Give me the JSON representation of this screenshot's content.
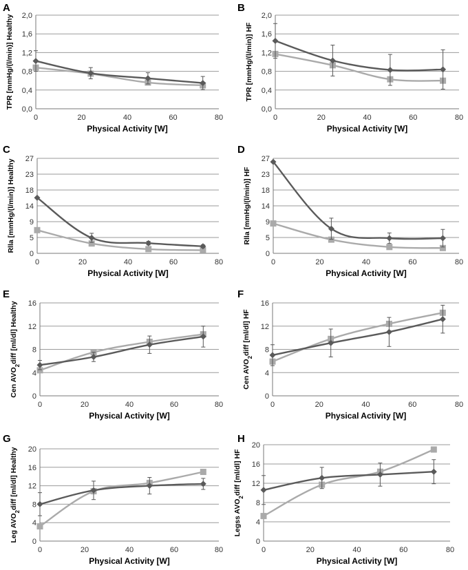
{
  "series_colors": {
    "dark": "#5a5a5a",
    "light": "#aaaaaa"
  },
  "chart_data": [
    {
      "panel": "A",
      "type": "line",
      "ylabel": "TPR [mmHg/(l/min)] Healthy",
      "xlabel": "Physical Activity [W]",
      "ylim": [
        0,
        2.0
      ],
      "yticks": [
        "0,0",
        "0,4",
        "0,8",
        "1,2",
        "1,6",
        "2,0"
      ],
      "xlim": [
        0,
        80
      ],
      "xticks": [
        "0",
        "20",
        "40",
        "60",
        "80"
      ],
      "series": [
        {
          "name": "dark",
          "marker": "diamond",
          "x": [
            0,
            24,
            49,
            73
          ],
          "y": [
            1.02,
            0.76,
            0.65,
            0.55
          ],
          "err": [
            0.22,
            0.12,
            0.12,
            0.14
          ]
        },
        {
          "name": "light",
          "marker": "square",
          "x": [
            0,
            24,
            49,
            73
          ],
          "y": [
            0.88,
            0.75,
            0.56,
            0.5
          ],
          "err": [
            0,
            0,
            0,
            0
          ]
        }
      ]
    },
    {
      "panel": "B",
      "type": "line",
      "ylabel": "TPR [mmHg/(l/min)] HF",
      "xlabel": "Physical Activity [W]",
      "ylim": [
        0,
        2.0
      ],
      "yticks": [
        "0,0",
        "0,4",
        "0,8",
        "1,2",
        "1,6",
        "2,0"
      ],
      "xlim": [
        0,
        80
      ],
      "xticks": [
        "0",
        "20",
        "40",
        "60",
        "80"
      ],
      "series": [
        {
          "name": "dark",
          "marker": "diamond",
          "x": [
            0,
            25,
            50,
            73
          ],
          "y": [
            1.45,
            1.03,
            0.83,
            0.84
          ],
          "err": [
            0.37,
            0.33,
            0.33,
            0.42
          ]
        },
        {
          "name": "light",
          "marker": "square",
          "x": [
            0,
            25,
            50,
            73
          ],
          "y": [
            1.17,
            0.93,
            0.63,
            0.6
          ],
          "err": [
            0,
            0,
            0,
            0
          ]
        }
      ]
    },
    {
      "panel": "C",
      "type": "line",
      "ylabel": "Rlla [mmHg/(l/min)] Healthy",
      "xlabel": "Physical Activity [W]",
      "ylim": [
        0,
        27
      ],
      "yticks": [
        "0",
        "5",
        "9",
        "14",
        "18",
        "23",
        "27"
      ],
      "ytickvals": [
        0,
        4.5,
        9,
        13.5,
        18,
        22.5,
        27
      ],
      "xlim": [
        0,
        80
      ],
      "xticks": [
        "0",
        "20",
        "40",
        "60",
        "80"
      ],
      "series": [
        {
          "name": "dark",
          "marker": "diamond",
          "x": [
            0,
            24,
            49,
            73
          ],
          "y": [
            15.8,
            4.4,
            2.9,
            2.0
          ],
          "err": [
            0,
            1.3,
            0.5,
            0.4
          ]
        },
        {
          "name": "light",
          "marker": "square",
          "x": [
            0,
            24,
            49,
            73
          ],
          "y": [
            6.6,
            2.8,
            1.2,
            0.9
          ],
          "err": [
            0,
            0,
            0,
            0
          ]
        }
      ]
    },
    {
      "panel": "D",
      "type": "line",
      "ylabel": "Rlla [mmHg/(l/min)] HF",
      "xlabel": "Physical Activity [W]",
      "ylim": [
        0,
        27
      ],
      "yticks": [
        "0",
        "5",
        "9",
        "14",
        "18",
        "23",
        "27"
      ],
      "ytickvals": [
        0,
        4.5,
        9,
        13.5,
        18,
        22.5,
        27
      ],
      "xlim": [
        0,
        80
      ],
      "xticks": [
        "0",
        "20",
        "40",
        "60",
        "80"
      ],
      "series": [
        {
          "name": "dark",
          "marker": "diamond",
          "x": [
            0,
            25,
            50,
            73
          ],
          "y": [
            26,
            7.0,
            4.3,
            4.3
          ],
          "err": [
            0,
            3.0,
            1.5,
            2.5
          ]
        },
        {
          "name": "light",
          "marker": "square",
          "x": [
            0,
            25,
            50,
            73
          ],
          "y": [
            8.5,
            3.9,
            1.8,
            1.5
          ],
          "err": [
            0,
            0,
            0,
            0
          ]
        }
      ]
    },
    {
      "panel": "E",
      "type": "line",
      "ylabel": "Cen AVO2diff [ml/dl] Healthy",
      "xlabel": "Physical Activity [W]",
      "ylim": [
        0,
        16
      ],
      "yticks": [
        "0",
        "4",
        "8",
        "12",
        "16"
      ],
      "xlim": [
        0,
        80
      ],
      "xticks": [
        "0",
        "20",
        "40",
        "60",
        "80"
      ],
      "series": [
        {
          "name": "dark",
          "marker": "diamond",
          "x": [
            0,
            24,
            49,
            73
          ],
          "y": [
            5.3,
            6.7,
            8.8,
            10.2
          ],
          "err": [
            0.8,
            0.8,
            1.5,
            1.8
          ]
        },
        {
          "name": "light",
          "marker": "square",
          "x": [
            0,
            24,
            49,
            73
          ],
          "y": [
            4.4,
            7.5,
            9.3,
            10.6
          ],
          "err": [
            0,
            0,
            0,
            0
          ]
        }
      ]
    },
    {
      "panel": "F",
      "type": "line",
      "ylabel": "Cen AVO2diff [ml/dl] HF",
      "xlabel": "Physical Activity [W]",
      "ylim": [
        0,
        16
      ],
      "yticks": [
        "0",
        "4",
        "8",
        "12",
        "16"
      ],
      "xlim": [
        0,
        80
      ],
      "xticks": [
        "0",
        "20",
        "40",
        "60",
        "80"
      ],
      "series": [
        {
          "name": "dark",
          "marker": "diamond",
          "x": [
            0,
            25,
            50,
            73
          ],
          "y": [
            7.0,
            9.1,
            11.0,
            13.2
          ],
          "err": [
            1.8,
            2.4,
            2.5,
            2.4
          ]
        },
        {
          "name": "light",
          "marker": "square",
          "x": [
            0,
            25,
            50,
            73
          ],
          "y": [
            5.9,
            9.8,
            12.4,
            14.3
          ],
          "err": [
            0,
            0,
            0,
            0
          ]
        }
      ]
    },
    {
      "panel": "G",
      "type": "line",
      "ylabel": "Leg AVO2diff [ml/dl] Healthy",
      "xlabel": "Physical Activity [W]",
      "ylim": [
        0,
        20
      ],
      "yticks": [
        "0",
        "4",
        "8",
        "12",
        "16",
        "20"
      ],
      "xlim": [
        0,
        80
      ],
      "xticks": [
        "0",
        "20",
        "40",
        "60",
        "80"
      ],
      "series": [
        {
          "name": "dark",
          "marker": "diamond",
          "x": [
            0,
            24,
            49,
            73
          ],
          "y": [
            8.0,
            11.0,
            12.0,
            12.4
          ],
          "err": [
            2.5,
            2.0,
            1.8,
            1.2
          ]
        },
        {
          "name": "light",
          "marker": "square",
          "x": [
            0,
            24,
            49,
            73
          ],
          "y": [
            3.2,
            10.8,
            12.6,
            15.0
          ],
          "err": [
            0,
            0,
            0,
            0
          ]
        }
      ]
    },
    {
      "panel": "H",
      "type": "line",
      "ylabel": "Legss AVO2diff [ml/dl] HF",
      "xlabel": "Physical Activity [W]",
      "ylim": [
        0,
        20
      ],
      "yticks": [
        "0",
        "4",
        "8",
        "12",
        "16",
        "20"
      ],
      "xlim": [
        0,
        80
      ],
      "xticks": [
        "0",
        "20",
        "40",
        "60",
        "80"
      ],
      "series": [
        {
          "name": "dark",
          "marker": "diamond",
          "x": [
            0,
            25,
            50,
            73
          ],
          "y": [
            10.6,
            13.1,
            13.8,
            14.4
          ],
          "err": [
            3.0,
            2.2,
            2.4,
            2.5
          ]
        },
        {
          "name": "light",
          "marker": "square",
          "x": [
            0,
            25,
            50,
            73
          ],
          "y": [
            5.2,
            11.7,
            14.4,
            19.0
          ],
          "err": [
            0,
            0,
            0,
            0
          ]
        }
      ]
    }
  ]
}
